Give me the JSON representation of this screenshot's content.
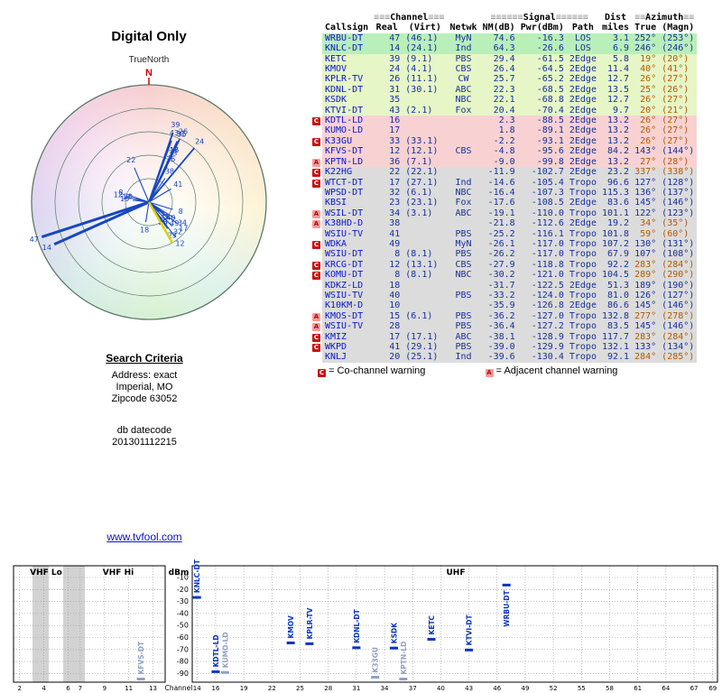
{
  "radar": {
    "title": "Digital Only",
    "north_ref": "TrueNorth",
    "north_label": "N"
  },
  "search": {
    "heading": "Search Criteria",
    "lines": [
      "Address: exact",
      "Imperial, MO",
      "Zipcode 63052"
    ],
    "db_label": "db datecode",
    "db_value": "201301112215"
  },
  "site_link": "www.tvfool.com",
  "legend": {
    "c_symbol": "C",
    "c_text": "= Co-channel warning",
    "a_symbol": "A",
    "a_text": "= Adjacent channel warning"
  },
  "colors": {
    "zone_green": "#b9efb9",
    "zone_yellow": "#e6f6c6",
    "zone_pink": "#f8d2d2",
    "zone_gray": "#dcdcdc",
    "accent_blue": "#15309c",
    "callsign_blue": "#0715cd",
    "azimuth_orange": "#b35900",
    "warn_c_red": "#cc1111",
    "warn_a_pink": "#ff9999",
    "north_red": "#cc0000",
    "highlight_yellow": "#e0d000"
  },
  "table": {
    "group_headers": {
      "channel": {
        "pre": "≡≡≡",
        "label": "Channel",
        "post": "≡≡≡"
      },
      "signal": {
        "pre": "≡≡≡≡≡≡",
        "label": "Signal",
        "post": "≡≡≡≡≡≡"
      },
      "dist": "Dist",
      "azimuth": {
        "pre": "≡≡",
        "label": "Azimuth",
        "post": "≡≡"
      }
    },
    "columns": [
      "Callsign",
      "Real",
      "(Virt)",
      "Netwk",
      "NM(dB)",
      "Pwr(dBm)",
      "Path",
      "miles",
      "True",
      "(Magn)"
    ],
    "rows": [
      {
        "w": "",
        "cs": "WRBU-DT",
        "re": "47",
        "vi": "(46.1)",
        "nw": "MyN",
        "nm": "74.6",
        "pw": "-16.3",
        "pa": "LOS",
        "mi": "3.1",
        "at": "252°",
        "am": "(253°)",
        "z": "green"
      },
      {
        "w": "",
        "cs": "KNLC-DT",
        "re": "14",
        "vi": "(24.1)",
        "nw": "Ind",
        "nm": "64.3",
        "pw": "-26.6",
        "pa": "LOS",
        "mi": "6.9",
        "at": "246°",
        "am": "(246°)",
        "z": "green"
      },
      {
        "w": "",
        "cs": "KETC",
        "re": "39",
        "vi": "(9.1)",
        "nw": "PBS",
        "nm": "29.4",
        "pw": "-61.5",
        "pa": "2Edge",
        "mi": "5.8",
        "at": "19°",
        "am": "(20°)",
        "z": "yellow"
      },
      {
        "w": "",
        "cs": "KMOV",
        "re": "24",
        "vi": "(4.1)",
        "nw": "CBS",
        "nm": "26.4",
        "pw": "-64.5",
        "pa": "2Edge",
        "mi": "11.4",
        "at": "40°",
        "am": "(41°)",
        "z": "yellow"
      },
      {
        "w": "",
        "cs": "KPLR-TV",
        "re": "26",
        "vi": "(11.1)",
        "nw": "CW",
        "nm": "25.7",
        "pw": "-65.2",
        "pa": "2Edge",
        "mi": "12.7",
        "at": "26°",
        "am": "(27°)",
        "z": "yellow"
      },
      {
        "w": "",
        "cs": "KDNL-DT",
        "re": "31",
        "vi": "(30.1)",
        "nw": "ABC",
        "nm": "22.3",
        "pw": "-68.5",
        "pa": "2Edge",
        "mi": "13.5",
        "at": "25°",
        "am": "(26°)",
        "z": "yellow"
      },
      {
        "w": "",
        "cs": "KSDK",
        "re": "35",
        "vi": "",
        "nw": "NBC",
        "nm": "22.1",
        "pw": "-68.8",
        "pa": "2Edge",
        "mi": "12.7",
        "at": "26°",
        "am": "(27°)",
        "z": "yellow"
      },
      {
        "w": "",
        "cs": "KTVI-DT",
        "re": "43",
        "vi": "(2.1)",
        "nw": "Fox",
        "nm": "20.4",
        "pw": "-70.4",
        "pa": "2Edge",
        "mi": "9.7",
        "at": "20°",
        "am": "(21°)",
        "z": "yellow"
      },
      {
        "w": "C",
        "cs": "KDTL-LD",
        "re": "16",
        "vi": "",
        "nw": "",
        "nm": "2.3",
        "pw": "-88.5",
        "pa": "2Edge",
        "mi": "13.2",
        "at": "26°",
        "am": "(27°)",
        "z": "pink"
      },
      {
        "w": "",
        "cs": "KUMO-LD",
        "re": "17",
        "vi": "",
        "nw": "",
        "nm": "1.8",
        "pw": "-89.1",
        "pa": "2Edge",
        "mi": "13.2",
        "at": "26°",
        "am": "(27°)",
        "z": "pink"
      },
      {
        "w": "C",
        "cs": "K33GU",
        "re": "33",
        "vi": "(33.1)",
        "nw": "",
        "nm": "-2.2",
        "pw": "-93.1",
        "pa": "2Edge",
        "mi": "13.2",
        "at": "26°",
        "am": "(27°)",
        "z": "pink"
      },
      {
        "w": "",
        "cs": "KFVS-DT",
        "re": "12",
        "vi": "(12.1)",
        "nw": "CBS",
        "nm": "-4.8",
        "pw": "-95.6",
        "pa": "2Edge",
        "mi": "84.2",
        "at": "143°",
        "am": "(144°)",
        "z": "pink"
      },
      {
        "w": "A",
        "cs": "KPTN-LD",
        "re": "36",
        "vi": "(7.1)",
        "nw": "",
        "nm": "-9.0",
        "pw": "-99.8",
        "pa": "2Edge",
        "mi": "13.2",
        "at": "27°",
        "am": "(28°)",
        "z": "pink"
      },
      {
        "w": "C",
        "cs": "K22HG",
        "re": "22",
        "vi": "(22.1)",
        "nw": "",
        "nm": "-11.9",
        "pw": "-102.7",
        "pa": "2Edge",
        "mi": "23.2",
        "at": "337°",
        "am": "(338°)",
        "z": "gray"
      },
      {
        "w": "C",
        "cs": "WTCT-DT",
        "re": "17",
        "vi": "(27.1)",
        "nw": "Ind",
        "nm": "-14.6",
        "pw": "-105.4",
        "pa": "Tropo",
        "mi": "96.6",
        "at": "127°",
        "am": "(128°)",
        "z": "gray"
      },
      {
        "w": "",
        "cs": "WPSD-DT",
        "re": "32",
        "vi": "(6.1)",
        "nw": "NBC",
        "nm": "-16.4",
        "pw": "-107.3",
        "pa": "Tropo",
        "mi": "115.3",
        "at": "136°",
        "am": "(137°)",
        "z": "gray"
      },
      {
        "w": "",
        "cs": "KBSI",
        "re": "23",
        "vi": "(23.1)",
        "nw": "Fox",
        "nm": "-17.6",
        "pw": "-108.5",
        "pa": "2Edge",
        "mi": "83.6",
        "at": "145°",
        "am": "(146°)",
        "z": "gray"
      },
      {
        "w": "A",
        "cs": "WSIL-DT",
        "re": "34",
        "vi": "(3.1)",
        "nw": "ABC",
        "nm": "-19.1",
        "pw": "-110.0",
        "pa": "Tropo",
        "mi": "101.1",
        "at": "122°",
        "am": "(123°)",
        "z": "gray"
      },
      {
        "w": "A",
        "cs": "K38HD-D",
        "re": "38",
        "vi": "",
        "nw": "",
        "nm": "-21.8",
        "pw": "-112.6",
        "pa": "2Edge",
        "mi": "19.2",
        "at": "34°",
        "am": "(35°)",
        "z": "gray"
      },
      {
        "w": "",
        "cs": "WSIU-TV",
        "re": "41",
        "vi": "",
        "nw": "PBS",
        "nm": "-25.2",
        "pw": "-116.1",
        "pa": "Tropo",
        "mi": "101.8",
        "at": "59°",
        "am": "(60°)",
        "z": "gray"
      },
      {
        "w": "C",
        "cs": "WDKA",
        "re": "49",
        "vi": "",
        "nw": "MyN",
        "nm": "-26.1",
        "pw": "-117.0",
        "pa": "Tropo",
        "mi": "107.2",
        "at": "130°",
        "am": "(131°)",
        "z": "gray"
      },
      {
        "w": "",
        "cs": "WSIU-DT",
        "re": "8",
        "vi": "(8.1)",
        "nw": "PBS",
        "nm": "-26.2",
        "pw": "-117.0",
        "pa": "Tropo",
        "mi": "67.9",
        "at": "107°",
        "am": "(108°)",
        "z": "gray"
      },
      {
        "w": "C",
        "cs": "KRCG-DT",
        "re": "12",
        "vi": "(13.1)",
        "nw": "CBS",
        "nm": "-27.9",
        "pw": "-118.8",
        "pa": "Tropo",
        "mi": "92.2",
        "at": "283°",
        "am": "(284°)",
        "z": "gray"
      },
      {
        "w": "C",
        "cs": "KOMU-DT",
        "re": "8",
        "vi": "(8.1)",
        "nw": "NBC",
        "nm": "-30.2",
        "pw": "-121.0",
        "pa": "Tropo",
        "mi": "104.5",
        "at": "289°",
        "am": "(290°)",
        "z": "gray"
      },
      {
        "w": "",
        "cs": "KDKZ-LD",
        "re": "18",
        "vi": "",
        "nw": "",
        "nm": "-31.7",
        "pw": "-122.5",
        "pa": "2Edge",
        "mi": "51.3",
        "at": "189°",
        "am": "(190°)",
        "z": "gray"
      },
      {
        "w": "",
        "cs": "WSIU-TV",
        "re": "40",
        "vi": "",
        "nw": "PBS",
        "nm": "-33.2",
        "pw": "-124.0",
        "pa": "Tropo",
        "mi": "81.0",
        "at": "126°",
        "am": "(127°)",
        "z": "gray"
      },
      {
        "w": "",
        "cs": "K10KM-D",
        "re": "10",
        "vi": "",
        "nw": "",
        "nm": "-35.9",
        "pw": "-126.8",
        "pa": "2Edge",
        "mi": "86.6",
        "at": "145°",
        "am": "(146°)",
        "z": "gray"
      },
      {
        "w": "A",
        "cs": "KMOS-DT",
        "re": "15",
        "vi": "(6.1)",
        "nw": "PBS",
        "nm": "-36.2",
        "pw": "-127.0",
        "pa": "Tropo",
        "mi": "132.8",
        "at": "277°",
        "am": "(278°)",
        "z": "gray"
      },
      {
        "w": "A",
        "cs": "WSIU-TV",
        "re": "28",
        "vi": "",
        "nw": "PBS",
        "nm": "-36.4",
        "pw": "-127.2",
        "pa": "Tropo",
        "mi": "83.5",
        "at": "145°",
        "am": "(146°)",
        "z": "gray"
      },
      {
        "w": "C",
        "cs": "KMIZ",
        "re": "17",
        "vi": "(17.1)",
        "nw": "ABC",
        "nm": "-38.1",
        "pw": "-128.9",
        "pa": "Tropo",
        "mi": "117.7",
        "at": "283°",
        "am": "(284°)",
        "z": "gray"
      },
      {
        "w": "C",
        "cs": "WKPD",
        "re": "41",
        "vi": "(29.1)",
        "nw": "PBS",
        "nm": "-39.0",
        "pw": "-129.9",
        "pa": "Tropo",
        "mi": "132.1",
        "at": "133°",
        "am": "(134°)",
        "z": "gray"
      },
      {
        "w": "",
        "cs": "KNLJ",
        "re": "20",
        "vi": "(25.1)",
        "nw": "Ind",
        "nm": "-39.6",
        "pw": "-130.4",
        "pa": "Tropo",
        "mi": "92.1",
        "at": "284°",
        "am": "(285°)",
        "z": "gray"
      }
    ]
  },
  "chart_data": [
    {
      "type": "scatter",
      "subtype": "polar-azimuth-radar",
      "title": "Digital Only",
      "north_reference": "TrueNorth",
      "rings": 5,
      "points": [
        {
          "ch": 47,
          "azimuth_deg": 252,
          "nm_db": 74.6
        },
        {
          "ch": 14,
          "azimuth_deg": 246,
          "nm_db": 64.3
        },
        {
          "ch": 39,
          "azimuth_deg": 19,
          "nm_db": 29.4
        },
        {
          "ch": 24,
          "azimuth_deg": 40,
          "nm_db": 26.4
        },
        {
          "ch": 26,
          "azimuth_deg": 26,
          "nm_db": 25.7
        },
        {
          "ch": 31,
          "azimuth_deg": 25,
          "nm_db": 22.3
        },
        {
          "ch": 35,
          "azimuth_deg": 26,
          "nm_db": 22.1
        },
        {
          "ch": 43,
          "azimuth_deg": 20,
          "nm_db": 20.4
        },
        {
          "ch": 16,
          "azimuth_deg": 26,
          "nm_db": 2.3
        },
        {
          "ch": 17,
          "azimuth_deg": 26,
          "nm_db": 1.8
        },
        {
          "ch": 33,
          "azimuth_deg": 26,
          "nm_db": -2.2
        },
        {
          "ch": 12,
          "azimuth_deg": 143,
          "nm_db": -4.8
        },
        {
          "ch": 36,
          "azimuth_deg": 27,
          "nm_db": -9.0
        },
        {
          "ch": 22,
          "azimuth_deg": 337,
          "nm_db": -11.9
        },
        {
          "ch": 17,
          "azimuth_deg": 127,
          "nm_db": -14.6
        },
        {
          "ch": 32,
          "azimuth_deg": 136,
          "nm_db": -16.4
        },
        {
          "ch": 23,
          "azimuth_deg": 145,
          "nm_db": -17.6
        },
        {
          "ch": 34,
          "azimuth_deg": 122,
          "nm_db": -19.1
        },
        {
          "ch": 38,
          "azimuth_deg": 34,
          "nm_db": -21.8
        },
        {
          "ch": 41,
          "azimuth_deg": 59,
          "nm_db": -25.2
        },
        {
          "ch": 49,
          "azimuth_deg": 130,
          "nm_db": -26.1
        },
        {
          "ch": 8,
          "azimuth_deg": 107,
          "nm_db": -26.2
        },
        {
          "ch": 12,
          "azimuth_deg": 283,
          "nm_db": -27.9
        },
        {
          "ch": 8,
          "azimuth_deg": 289,
          "nm_db": -30.2
        },
        {
          "ch": 18,
          "azimuth_deg": 189,
          "nm_db": -31.7
        },
        {
          "ch": 40,
          "azimuth_deg": 126,
          "nm_db": -33.2
        },
        {
          "ch": 10,
          "azimuth_deg": 145,
          "nm_db": -35.9
        },
        {
          "ch": 15,
          "azimuth_deg": 277,
          "nm_db": -36.2
        },
        {
          "ch": 28,
          "azimuth_deg": 145,
          "nm_db": -36.4
        },
        {
          "ch": 17,
          "azimuth_deg": 283,
          "nm_db": -38.1
        },
        {
          "ch": 41,
          "azimuth_deg": 133,
          "nm_db": -39.0
        },
        {
          "ch": 20,
          "azimuth_deg": 284,
          "nm_db": -39.6
        }
      ],
      "highlight": {
        "azimuth_deg": 150,
        "color": "#e0d000"
      }
    },
    {
      "type": "scatter",
      "subtype": "spectrum",
      "xlabel": "Channel",
      "ylabel": "dBm",
      "ylim": [
        -90,
        -10
      ],
      "y_ticks": [
        -10,
        -20,
        -30,
        -40,
        -50,
        -60,
        -70,
        -80,
        -90
      ],
      "bands": [
        {
          "label": "VHF Lo",
          "channels": [
            2,
            6
          ]
        },
        {
          "label": "VHF Hi",
          "channels": [
            7,
            13
          ]
        },
        {
          "label": "UHF",
          "channels": [
            14,
            69
          ]
        }
      ],
      "x_ticks_vhf": [
        2,
        4,
        6,
        7,
        9,
        11,
        13
      ],
      "x_ticks_uhf": [
        14,
        16,
        19,
        22,
        25,
        28,
        31,
        34,
        37,
        40,
        43,
        46,
        49,
        52,
        55,
        58,
        61,
        64,
        67,
        69
      ],
      "points": [
        {
          "callsign": "KFVS-DT",
          "channel": 12,
          "pwr_dbm": -95.6,
          "dim": true
        },
        {
          "callsign": "KNLC-DT",
          "channel": 14,
          "pwr_dbm": -26.6,
          "dim": false
        },
        {
          "callsign": "KDTL-LD",
          "channel": 16,
          "pwr_dbm": -88.5,
          "dim": false
        },
        {
          "callsign": "KUMO-LD",
          "channel": 17,
          "pwr_dbm": -89.1,
          "dim": true
        },
        {
          "callsign": "KMOV",
          "channel": 24,
          "pwr_dbm": -64.5,
          "dim": false
        },
        {
          "callsign": "KPLR-TV",
          "channel": 26,
          "pwr_dbm": -65.2,
          "dim": false
        },
        {
          "callsign": "KDNL-DT",
          "channel": 31,
          "pwr_dbm": -68.5,
          "dim": false
        },
        {
          "callsign": "K33GU",
          "channel": 33,
          "pwr_dbm": -93.1,
          "dim": true
        },
        {
          "callsign": "KSDK",
          "channel": 35,
          "pwr_dbm": -68.8,
          "dim": false
        },
        {
          "callsign": "KPTN-LD",
          "channel": 36,
          "pwr_dbm": -99.8,
          "dim": true
        },
        {
          "callsign": "KETC",
          "channel": 39,
          "pwr_dbm": -61.5,
          "dim": false
        },
        {
          "callsign": "KTVI-DT",
          "channel": 43,
          "pwr_dbm": -70.4,
          "dim": false
        },
        {
          "callsign": "WRBU-DT",
          "channel": 47,
          "pwr_dbm": -16.3,
          "dim": false
        }
      ]
    }
  ]
}
